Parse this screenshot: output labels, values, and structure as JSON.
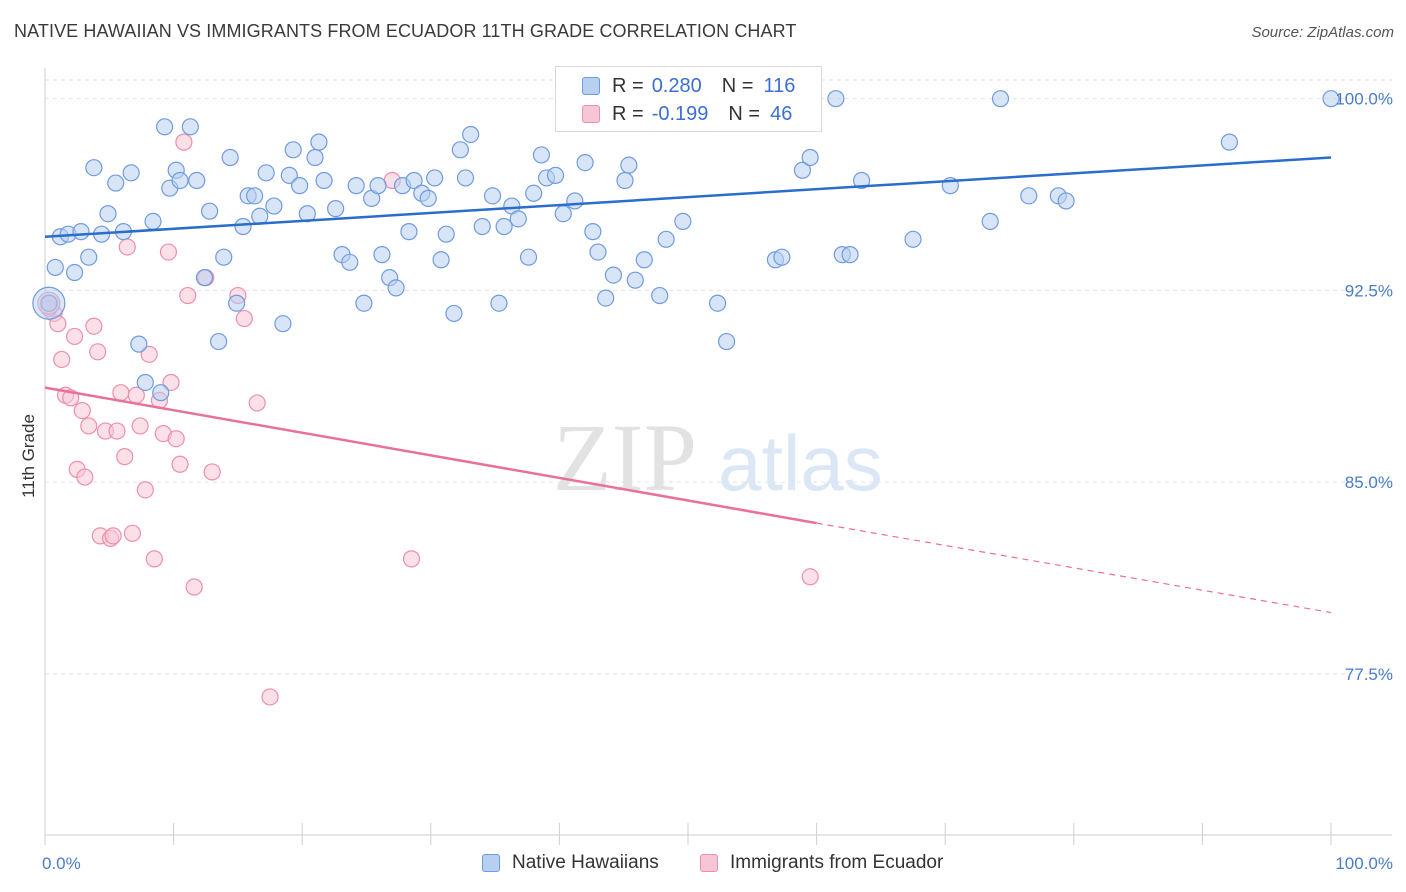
{
  "header": {
    "title": "NATIVE HAWAIIAN VS IMMIGRANTS FROM ECUADOR 11TH GRADE CORRELATION CHART",
    "source": "Source: ZipAtlas.com"
  },
  "watermark": {
    "zip": "ZIP",
    "atlas": "atlas"
  },
  "legend": {
    "rows": [
      {
        "r_label": "R =",
        "r_value": "0.280",
        "n_label": "N =",
        "n_value": "116"
      },
      {
        "r_label": "R =",
        "r_value": "-0.199",
        "n_label": "N =",
        "n_value": "46"
      }
    ]
  },
  "bottom_legend": {
    "items": [
      {
        "label": "Native Hawaiians"
      },
      {
        "label": "Immigrants from Ecuador"
      }
    ]
  },
  "colors": {
    "blue_fill": "#b8d0f0",
    "blue_stroke": "#6f9be0",
    "blue_line": "#2a6dcc",
    "pink_fill": "#f7c6d6",
    "pink_stroke": "#ec8fae",
    "pink_line": "#e8709a",
    "grid": "#e3e3e3",
    "tick_label": "#4a7cc9"
  },
  "chart_data": {
    "type": "scatter",
    "title": "NATIVE HAWAIIAN VS IMMIGRANTS FROM ECUADOR 11TH GRADE CORRELATION CHART",
    "xlabel": "",
    "ylabel": "11th Grade",
    "xlim": [
      0,
      100
    ],
    "ylim": [
      71.2,
      101.2
    ],
    "x_tick_labels": [
      "0.0%",
      "100.0%"
    ],
    "y_ticks": [
      77.5,
      85.0,
      92.5,
      100.0
    ],
    "y_tick_labels": [
      "77.5%",
      "85.0%",
      "92.5%",
      "100.0%"
    ],
    "grid": true,
    "legend_position": "top-center",
    "series": [
      {
        "name": "Native Hawaiians",
        "color": "#6f9be0",
        "trend": {
          "x": [
            0,
            100
          ],
          "y": [
            94.6,
            97.7
          ]
        },
        "points": [
          [
            0.3,
            92.0
          ],
          [
            0.8,
            93.4
          ],
          [
            1.2,
            94.6
          ],
          [
            1.8,
            94.7
          ],
          [
            2.3,
            93.2
          ],
          [
            2.8,
            94.8
          ],
          [
            3.4,
            93.8
          ],
          [
            3.8,
            97.3
          ],
          [
            4.4,
            94.7
          ],
          [
            4.9,
            95.5
          ],
          [
            5.5,
            96.7
          ],
          [
            6.1,
            94.8
          ],
          [
            6.7,
            97.1
          ],
          [
            7.3,
            90.4
          ],
          [
            7.8,
            88.9
          ],
          [
            8.4,
            95.2
          ],
          [
            9.0,
            88.5
          ],
          [
            9.3,
            98.9
          ],
          [
            9.7,
            96.5
          ],
          [
            10.2,
            97.2
          ],
          [
            10.5,
            96.8
          ],
          [
            11.3,
            98.9
          ],
          [
            11.8,
            96.8
          ],
          [
            12.4,
            93.0
          ],
          [
            12.8,
            95.6
          ],
          [
            13.5,
            90.5
          ],
          [
            13.9,
            93.8
          ],
          [
            14.4,
            97.7
          ],
          [
            14.9,
            92.0
          ],
          [
            15.4,
            95.0
          ],
          [
            15.8,
            96.2
          ],
          [
            16.3,
            96.2
          ],
          [
            16.7,
            95.4
          ],
          [
            17.2,
            97.1
          ],
          [
            17.8,
            95.8
          ],
          [
            18.5,
            91.2
          ],
          [
            19.0,
            97.0
          ],
          [
            19.3,
            98.0
          ],
          [
            19.8,
            96.6
          ],
          [
            20.4,
            95.5
          ],
          [
            21.0,
            97.7
          ],
          [
            21.3,
            98.3
          ],
          [
            21.7,
            96.8
          ],
          [
            22.6,
            95.7
          ],
          [
            23.1,
            93.9
          ],
          [
            23.7,
            93.6
          ],
          [
            24.2,
            96.6
          ],
          [
            24.8,
            92.0
          ],
          [
            25.4,
            96.1
          ],
          [
            25.9,
            96.6
          ],
          [
            26.2,
            93.9
          ],
          [
            26.8,
            93.0
          ],
          [
            27.3,
            92.6
          ],
          [
            27.8,
            96.6
          ],
          [
            28.3,
            94.8
          ],
          [
            28.7,
            96.8
          ],
          [
            29.3,
            96.3
          ],
          [
            29.8,
            96.1
          ],
          [
            30.3,
            96.9
          ],
          [
            30.8,
            93.7
          ],
          [
            31.2,
            94.7
          ],
          [
            31.8,
            91.6
          ],
          [
            32.3,
            98.0
          ],
          [
            32.7,
            96.9
          ],
          [
            33.1,
            98.6
          ],
          [
            34.0,
            95.0
          ],
          [
            34.8,
            96.2
          ],
          [
            35.3,
            92.0
          ],
          [
            35.7,
            95.0
          ],
          [
            36.3,
            95.8
          ],
          [
            36.8,
            95.3
          ],
          [
            37.6,
            93.8
          ],
          [
            38.0,
            96.3
          ],
          [
            38.6,
            97.8
          ],
          [
            39.0,
            96.9
          ],
          [
            39.7,
            97.0
          ],
          [
            40.3,
            95.5
          ],
          [
            40.8,
            100.0
          ],
          [
            41.2,
            96.0
          ],
          [
            42.0,
            97.5
          ],
          [
            42.6,
            94.8
          ],
          [
            43.0,
            94.0
          ],
          [
            43.6,
            92.2
          ],
          [
            44.2,
            93.1
          ],
          [
            45.1,
            96.8
          ],
          [
            45.4,
            97.4
          ],
          [
            45.9,
            92.9
          ],
          [
            46.6,
            93.7
          ],
          [
            47.8,
            92.3
          ],
          [
            48.3,
            94.5
          ],
          [
            49.6,
            95.2
          ],
          [
            50.3,
            100.0
          ],
          [
            53.0,
            90.5
          ],
          [
            52.3,
            92.0
          ],
          [
            55.4,
            100.0
          ],
          [
            56.8,
            93.7
          ],
          [
            57.3,
            93.8
          ],
          [
            58.9,
            97.2
          ],
          [
            59.5,
            97.7
          ],
          [
            61.5,
            100.0
          ],
          [
            62.0,
            93.9
          ],
          [
            62.6,
            93.9
          ],
          [
            63.5,
            96.8
          ],
          [
            67.5,
            94.5
          ],
          [
            70.4,
            96.6
          ],
          [
            73.5,
            95.2
          ],
          [
            74.3,
            100.0
          ],
          [
            76.5,
            96.2
          ],
          [
            78.8,
            96.2
          ],
          [
            79.4,
            96.0
          ],
          [
            92.1,
            98.3
          ],
          [
            100.0,
            100.0
          ]
        ]
      },
      {
        "name": "Immigrants from Ecuador",
        "color": "#ec8fae",
        "trend": {
          "x": [
            0,
            60
          ],
          "y": [
            88.7,
            83.4
          ]
        },
        "trend_extension": {
          "x": [
            60,
            100
          ],
          "y": [
            83.4,
            79.9
          ]
        },
        "points": [
          [
            0.4,
            92.0
          ],
          [
            0.7,
            91.6
          ],
          [
            1.0,
            91.2
          ],
          [
            1.3,
            89.8
          ],
          [
            1.6,
            88.4
          ],
          [
            2.0,
            88.3
          ],
          [
            2.3,
            90.7
          ],
          [
            2.5,
            85.5
          ],
          [
            2.9,
            87.8
          ],
          [
            3.1,
            85.2
          ],
          [
            3.4,
            87.2
          ],
          [
            3.8,
            91.1
          ],
          [
            4.1,
            90.1
          ],
          [
            4.3,
            82.9
          ],
          [
            4.7,
            87.0
          ],
          [
            5.1,
            82.8
          ],
          [
            5.3,
            82.9
          ],
          [
            5.6,
            87.0
          ],
          [
            5.9,
            88.5
          ],
          [
            6.2,
            86.0
          ],
          [
            6.4,
            94.2
          ],
          [
            6.8,
            83.0
          ],
          [
            7.1,
            88.4
          ],
          [
            7.4,
            87.2
          ],
          [
            7.8,
            84.7
          ],
          [
            8.1,
            90.0
          ],
          [
            8.5,
            82.0
          ],
          [
            8.9,
            88.2
          ],
          [
            9.2,
            86.9
          ],
          [
            9.6,
            94.0
          ],
          [
            9.8,
            88.9
          ],
          [
            10.2,
            86.7
          ],
          [
            10.5,
            85.7
          ],
          [
            10.8,
            98.3
          ],
          [
            11.1,
            92.3
          ],
          [
            11.6,
            80.9
          ],
          [
            12.5,
            93.0
          ],
          [
            13.0,
            85.4
          ],
          [
            15.0,
            92.3
          ],
          [
            15.5,
            91.4
          ],
          [
            16.5,
            88.1
          ],
          [
            17.5,
            76.6
          ],
          [
            27.0,
            96.8
          ],
          [
            28.5,
            82.0
          ],
          [
            59.5,
            81.3
          ],
          [
            0.3,
            91.8
          ]
        ]
      }
    ]
  }
}
